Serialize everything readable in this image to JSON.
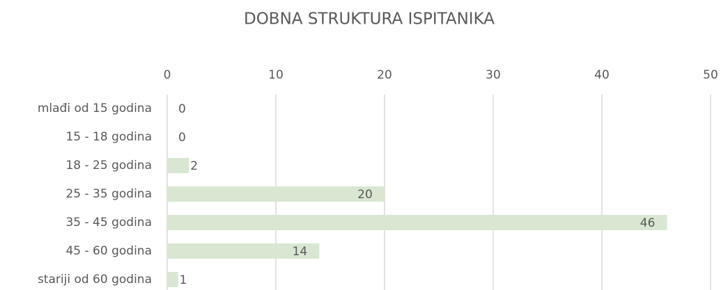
{
  "chart_data": {
    "type": "bar",
    "orientation": "horizontal",
    "title": "DOBNA STRUKTURA ISPITANIKA",
    "categories": [
      "mlađi od 15 godina",
      "15 - 18 godina",
      "18 - 25 godina",
      "25 - 35 godina",
      "35 - 45 godina",
      "45 - 60 godina",
      "stariji od 60 godina"
    ],
    "values": [
      0,
      0,
      2,
      20,
      46,
      14,
      1
    ],
    "color": "#d9e7d2",
    "xlim": [
      0,
      50
    ],
    "xticks": [
      0,
      10,
      20,
      30,
      40,
      50
    ],
    "grid": true
  }
}
